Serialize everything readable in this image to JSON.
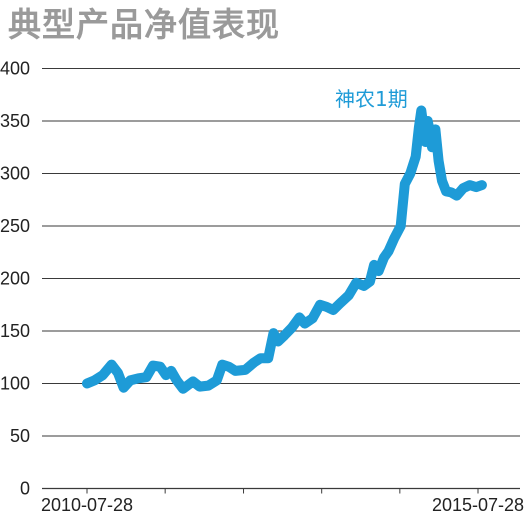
{
  "title": "典型产品净值表现",
  "chart_data": {
    "type": "line",
    "title": "典型产品净值表现",
    "xlabel": "",
    "ylabel": "",
    "ylim": [
      0,
      400
    ],
    "yticks": [
      0,
      50,
      100,
      150,
      200,
      250,
      300,
      350,
      400
    ],
    "xlim": [
      "2010-07-28",
      "2015-09-18"
    ],
    "xtick_labels": [
      {
        "date": "2010-07-28",
        "label": "2010-07-28"
      },
      {
        "date": "2015-07-28",
        "label": "2015-07-28"
      }
    ],
    "xtick_dates": [
      "2010-07-28",
      "2011-07-28",
      "2012-07-28",
      "2013-07-28",
      "2014-07-28",
      "2015-07-28"
    ],
    "grid": true,
    "series": [
      {
        "name": "神农1期",
        "color": "#1e9bd7",
        "points": [
          [
            "2010-07-28",
            100
          ],
          [
            "2010-09-01",
            103
          ],
          [
            "2010-10-10",
            108
          ],
          [
            "2010-11-20",
            118
          ],
          [
            "2010-12-20",
            110
          ],
          [
            "2011-01-15",
            96
          ],
          [
            "2011-02-15",
            103
          ],
          [
            "2011-03-25",
            105
          ],
          [
            "2011-05-01",
            106
          ],
          [
            "2011-06-01",
            117
          ],
          [
            "2011-07-05",
            116
          ],
          [
            "2011-08-01",
            108
          ],
          [
            "2011-08-25",
            112
          ],
          [
            "2011-09-20",
            103
          ],
          [
            "2011-10-20",
            95
          ],
          [
            "2011-12-05",
            102
          ],
          [
            "2012-01-05",
            97
          ],
          [
            "2012-02-15",
            98
          ],
          [
            "2012-03-25",
            103
          ],
          [
            "2012-04-20",
            118
          ],
          [
            "2012-05-20",
            116
          ],
          [
            "2012-06-20",
            112
          ],
          [
            "2012-08-05",
            113
          ],
          [
            "2012-09-15",
            120
          ],
          [
            "2012-10-15",
            124
          ],
          [
            "2012-11-20",
            124
          ],
          [
            "2012-12-15",
            148
          ],
          [
            "2013-01-05",
            140
          ],
          [
            "2013-02-05",
            146
          ],
          [
            "2013-03-10",
            153
          ],
          [
            "2013-04-15",
            163
          ],
          [
            "2013-05-10",
            157
          ],
          [
            "2013-06-15",
            162
          ],
          [
            "2013-07-20",
            175
          ],
          [
            "2013-08-20",
            173
          ],
          [
            "2013-09-20",
            170
          ],
          [
            "2013-10-20",
            176
          ],
          [
            "2013-12-01",
            184
          ],
          [
            "2014-01-05",
            196
          ],
          [
            "2014-02-10",
            193
          ],
          [
            "2014-03-10",
            197
          ],
          [
            "2014-03-30",
            213
          ],
          [
            "2014-04-20",
            207
          ],
          [
            "2014-05-15",
            220
          ],
          [
            "2014-06-05",
            226
          ],
          [
            "2014-07-01",
            238
          ],
          [
            "2014-08-01",
            250
          ],
          [
            "2014-08-20",
            290
          ],
          [
            "2014-09-15",
            300
          ],
          [
            "2014-10-10",
            316
          ],
          [
            "2014-10-25",
            344
          ],
          [
            "2014-11-05",
            360
          ],
          [
            "2014-11-15",
            345
          ],
          [
            "2014-11-25",
            330
          ],
          [
            "2014-12-05",
            350
          ],
          [
            "2014-12-15",
            340
          ],
          [
            "2014-12-25",
            325
          ],
          [
            "2015-01-10",
            342
          ],
          [
            "2015-01-25",
            312
          ],
          [
            "2015-02-10",
            293
          ],
          [
            "2015-03-01",
            283
          ],
          [
            "2015-03-25",
            282
          ],
          [
            "2015-04-20",
            279
          ],
          [
            "2015-05-20",
            286
          ],
          [
            "2015-06-20",
            289
          ],
          [
            "2015-07-20",
            287
          ],
          [
            "2015-08-15",
            289
          ]
        ]
      }
    ]
  }
}
